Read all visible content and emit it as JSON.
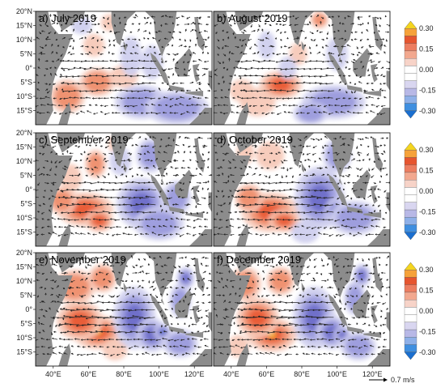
{
  "chart_data": {
    "type": "heatmap",
    "panels": [
      {
        "label": "a) July 2019"
      },
      {
        "label": "b) August 2019"
      },
      {
        "label": "c) September 2019"
      },
      {
        "label": "d) October 2019"
      },
      {
        "label": "e) November 2019"
      },
      {
        "label": "f) December 2019"
      }
    ],
    "lat_ticks": [
      "20°N",
      "15°N",
      "10°N",
      "5°N",
      "0°",
      "5°S",
      "10°S",
      "15°S"
    ],
    "lon_ticks": [
      "40°E",
      "60°E",
      "80°E",
      "100°E",
      "120°E"
    ],
    "lon_range": [
      30,
      130
    ],
    "lat_range": [
      -20,
      20
    ],
    "colorbar": {
      "ticks": [
        "0.30",
        "0.15",
        "0.00",
        "-0.15",
        "-0.30"
      ],
      "range": [
        -0.3,
        0.3
      ],
      "colors": [
        "#1a6fd0",
        "#3f8fe0",
        "#8fb0e8",
        "#b8b8e6",
        "#d9d6f0",
        "#ffffff",
        "#ffffff",
        "#f7d3c8",
        "#f2a88f",
        "#ec7d60",
        "#e6552f",
        "#f6a23a",
        "#f4d51f"
      ]
    },
    "reference_vector": {
      "label": "0.7 m/s"
    },
    "colors": {
      "land": "#8c8c8c",
      "warm": "#f08060",
      "cool": "#8f8fd6",
      "vector": "#222222"
    }
  }
}
